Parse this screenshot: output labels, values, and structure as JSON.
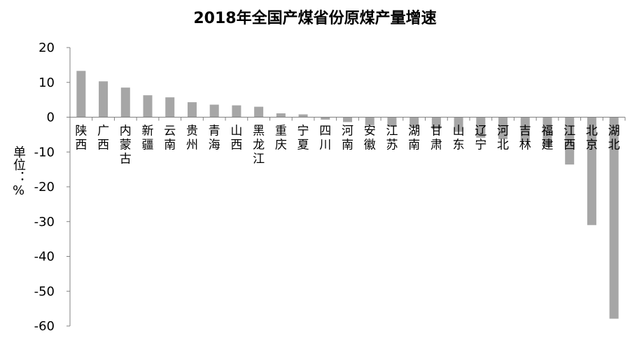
{
  "chart_data": {
    "type": "bar",
    "title": "2018年全国产煤省份原煤产量增速",
    "xlabel": "",
    "ylabel": "单位：%",
    "ylim": [
      -60,
      20
    ],
    "yticks": [
      20,
      10,
      0,
      -10,
      -20,
      -30,
      -40,
      -50,
      -60
    ],
    "grid": false,
    "bar_color": "#a6a6a6",
    "categories": [
      "陕西",
      "广西",
      "内蒙古",
      "新疆",
      "云南",
      "贵州",
      "青海",
      "山西",
      "黑龙江",
      "重庆",
      "宁夏",
      "四川",
      "河南",
      "安徽",
      "江苏",
      "湖南",
      "甘肃",
      "山东",
      "辽宁",
      "河北",
      "吉林",
      "福建",
      "江西",
      "北京",
      "湖北"
    ],
    "values": [
      13.3,
      10.3,
      8.5,
      6.3,
      5.7,
      4.3,
      3.6,
      3.4,
      3.0,
      1.1,
      0.8,
      -0.7,
      -1.4,
      -2.3,
      -2.7,
      -3.0,
      -3.4,
      -4.2,
      -5.9,
      -6.3,
      -6.8,
      -8.4,
      -13.6,
      -31.0,
      -57.9
    ]
  }
}
